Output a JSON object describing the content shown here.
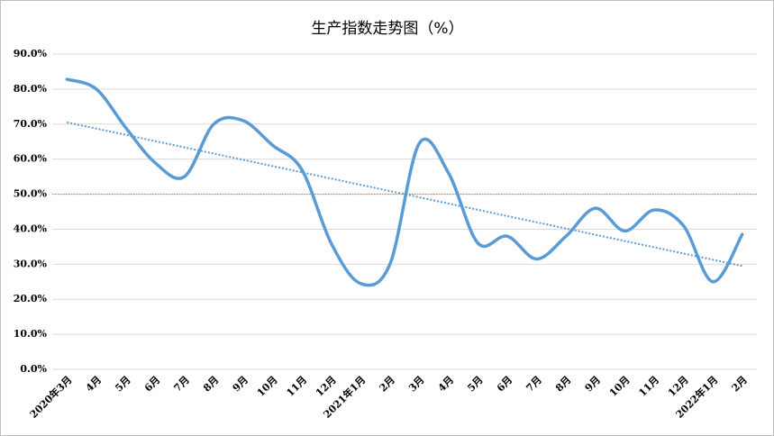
{
  "chart_data": {
    "type": "line",
    "title": "生产指数走势图（%）",
    "categories": [
      "2020年3月",
      "4月",
      "5月",
      "6月",
      "7月",
      "8月",
      "9月",
      "10月",
      "11月",
      "12月",
      "2021年1月",
      "2月",
      "3月",
      "4月",
      "5月",
      "6月",
      "7月",
      "8月",
      "9月",
      "10月",
      "11月",
      "12月",
      "2022年1月",
      "2月"
    ],
    "series": [
      {
        "color": "#5b9bd5",
        "values": [
          82.8,
          80,
          69,
          59,
          55,
          70,
          71,
          64,
          57,
          36,
          24.5,
          30,
          64.5,
          56,
          36,
          38,
          31.5,
          38,
          46,
          39.5,
          45.5,
          41,
          25,
          38.5
        ]
      }
    ],
    "trendline": {
      "color": "#5b9bd5",
      "values": [
        70.5,
        29.5
      ]
    },
    "reference_line": {
      "color": "#ed7d31",
      "value": 50
    },
    "ylim": [
      0,
      90
    ],
    "yticks": [
      {
        "value": 0,
        "label": "0.0%"
      },
      {
        "value": 10,
        "label": "10.0%"
      },
      {
        "value": 20,
        "label": "20.0%"
      },
      {
        "value": 30,
        "label": "30.0%"
      },
      {
        "value": 40,
        "label": "40.0%"
      },
      {
        "value": 50,
        "label": "50.0%"
      },
      {
        "value": 60,
        "label": "60.0%"
      },
      {
        "value": 70,
        "label": "70.0%"
      },
      {
        "value": 80,
        "label": "80.0%"
      },
      {
        "value": 90,
        "label": "90.0%"
      }
    ],
    "grid": true
  }
}
